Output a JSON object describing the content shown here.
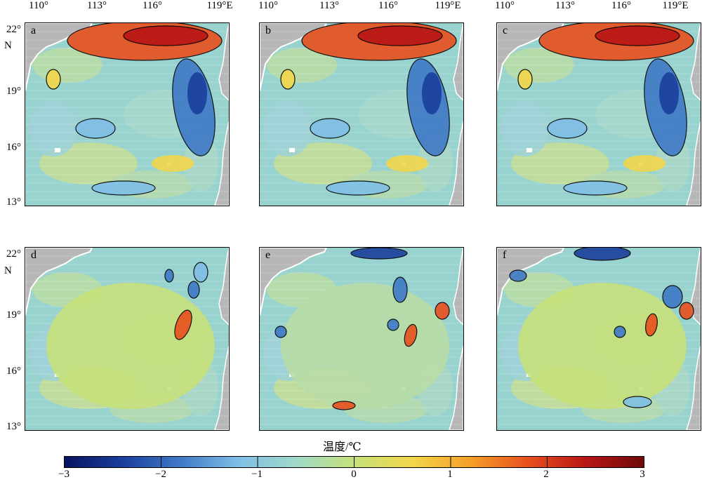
{
  "map": {
    "lon_ticks": [
      "110°",
      "113°",
      "116°",
      "119°E"
    ],
    "lat_ticks": [
      "22°",
      "19°",
      "16°",
      "13°"
    ],
    "lat_unit": "N",
    "panels": [
      {
        "letter": "a",
        "pattern": "warm-north-cold-east"
      },
      {
        "letter": "b",
        "pattern": "warm-north-cold-east"
      },
      {
        "letter": "c",
        "pattern": "warm-north-cold-east"
      },
      {
        "letter": "d",
        "pattern": "eddies-warm"
      },
      {
        "letter": "e",
        "pattern": "eddies-mixed"
      },
      {
        "letter": "f",
        "pattern": "eddies-cold-north"
      }
    ]
  },
  "colorbar": {
    "title": "温度/℃",
    "ticks": [
      "−3",
      "−2",
      "−1",
      "0",
      "1",
      "2",
      "3"
    ],
    "range": [
      -3,
      3
    ],
    "colors": [
      "#08125e",
      "#1a3f9c",
      "#3f79c6",
      "#7fbfe6",
      "#9fd9c8",
      "#c6e07a",
      "#f2d64a",
      "#f5a028",
      "#e8501e",
      "#b81616",
      "#6e0a0a"
    ]
  },
  "colors": {
    "land": "#b7b7b7",
    "coast": "#ffffff",
    "background_sea": "#98d3cf"
  }
}
